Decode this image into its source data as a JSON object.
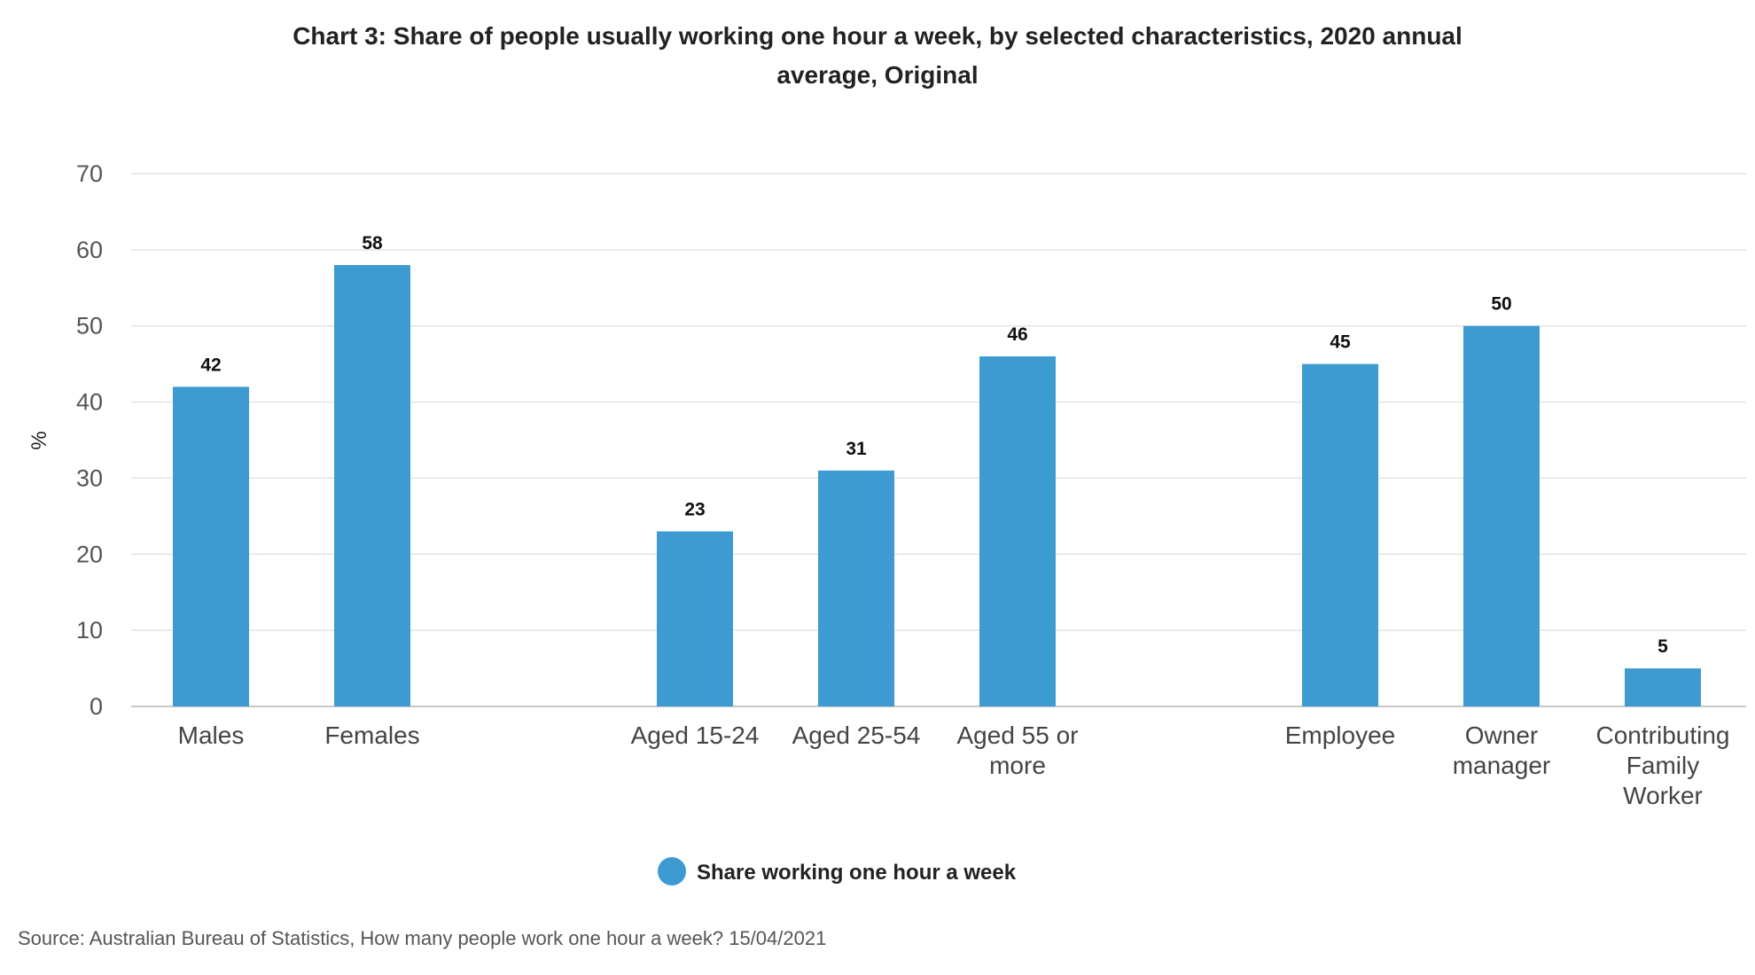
{
  "chart_data": {
    "type": "bar",
    "title": "Chart 3: Share of people usually working one hour a week, by selected characteristics, 2020 annual average, Original",
    "title_lines": [
      "Chart 3: Share of people usually working one hour a week, by selected characteristics, 2020 annual",
      "average, Original"
    ],
    "ylabel": "%",
    "xlabel": "",
    "ylim": [
      0,
      70
    ],
    "yticks": [
      0,
      10,
      20,
      30,
      40,
      50,
      60,
      70
    ],
    "grid": true,
    "legend_position": "bottom-center",
    "categories": [
      [
        "Males"
      ],
      [
        "Females"
      ],
      [
        "Aged 15-24"
      ],
      [
        "Aged 25-54"
      ],
      [
        "Aged 55 or",
        "more"
      ],
      [
        "Employee"
      ],
      [
        "Owner",
        "manager"
      ],
      [
        "Contributing",
        "Family",
        "Worker"
      ]
    ],
    "groups": [
      [
        0,
        1
      ],
      [
        2,
        3,
        4
      ],
      [
        5,
        6,
        7
      ]
    ],
    "series": [
      {
        "name": "Share working one hour a week",
        "color": "#3d9bd1",
        "values": [
          42,
          58,
          23,
          31,
          46,
          45,
          50,
          5
        ]
      }
    ],
    "source": "Source: Australian Bureau of Statistics, How many people work one hour a week? 15/04/2021"
  }
}
